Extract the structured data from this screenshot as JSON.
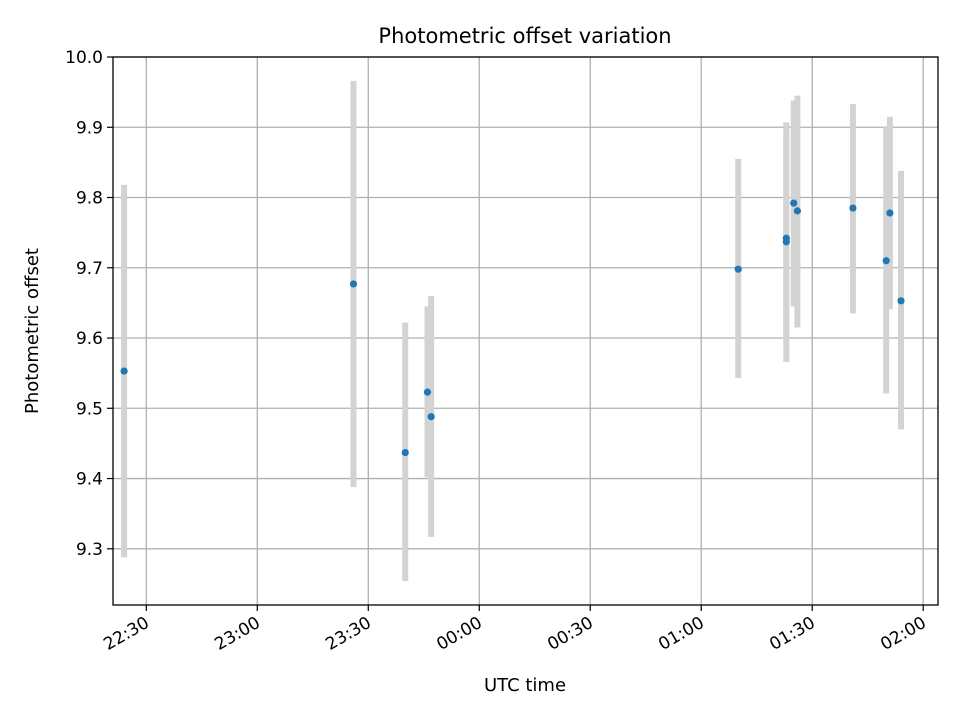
{
  "chart_data": {
    "type": "scatter",
    "title": "Photometric offset variation",
    "xlabel": "UTC time",
    "ylabel": "Photometric offset",
    "x_tick_labels": [
      "22:30",
      "23:00",
      "23:30",
      "00:00",
      "00:30",
      "01:00",
      "01:30",
      "02:00"
    ],
    "y_tick_labels": [
      "9.3",
      "9.4",
      "9.5",
      "9.6",
      "9.7",
      "9.8",
      "9.9",
      "10.0"
    ],
    "xlim": [
      "22:21",
      "02:04"
    ],
    "ylim": [
      9.22,
      10.0
    ],
    "grid": true,
    "marker_color": "#1f77b4",
    "errorbar_color": "#d3d3d3",
    "points": [
      {
        "time": "22:24",
        "value": 9.553,
        "err_low": 9.288,
        "err_high": 9.818
      },
      {
        "time": "23:26",
        "value": 9.677,
        "err_low": 9.388,
        "err_high": 9.966
      },
      {
        "time": "23:40",
        "value": 9.437,
        "err_low": 9.254,
        "err_high": 9.622
      },
      {
        "time": "23:46",
        "value": 9.523,
        "err_low": 9.402,
        "err_high": 9.645
      },
      {
        "time": "23:47",
        "value": 9.488,
        "err_low": 9.317,
        "err_high": 9.66
      },
      {
        "time": "01:10",
        "value": 9.698,
        "err_low": 9.543,
        "err_high": 9.855
      },
      {
        "time": "01:23",
        "value": 9.742,
        "err_low": 9.566,
        "err_high": 9.907
      },
      {
        "time": "01:23",
        "value": 9.737,
        "err_low": 9.588,
        "err_high": 9.893
      },
      {
        "time": "01:25",
        "value": 9.792,
        "err_low": 9.645,
        "err_high": 9.938
      },
      {
        "time": "01:26",
        "value": 9.781,
        "err_low": 9.615,
        "err_high": 9.945
      },
      {
        "time": "01:41",
        "value": 9.785,
        "err_low": 9.635,
        "err_high": 9.933
      },
      {
        "time": "01:50",
        "value": 9.71,
        "err_low": 9.521,
        "err_high": 9.9
      },
      {
        "time": "01:51",
        "value": 9.778,
        "err_low": 9.641,
        "err_high": 9.915
      },
      {
        "time": "01:54",
        "value": 9.653,
        "err_low": 9.47,
        "err_high": 9.838
      }
    ]
  }
}
